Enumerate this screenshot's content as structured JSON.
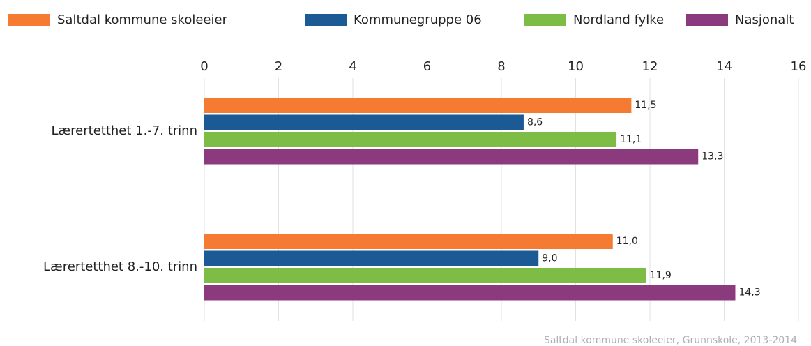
{
  "chart_data": {
    "type": "hbar",
    "categories": [
      "Lærertetthet 1.-7. trinn",
      "Lærertetthet 8.-10. trinn"
    ],
    "series": [
      {
        "name": "Saltdal kommune skoleeier",
        "color": "#f47b31",
        "values": [
          11.5,
          11.0
        ],
        "value_labels": [
          "11,5",
          "11,0"
        ]
      },
      {
        "name": "Kommunegruppe 06",
        "color": "#1c5a96",
        "values": [
          8.6,
          9.0
        ],
        "value_labels": [
          "8,6",
          "9,0"
        ]
      },
      {
        "name": "Nordland fylke",
        "color": "#7ebd45",
        "values": [
          11.1,
          11.9
        ],
        "value_labels": [
          "11,1",
          "11,9"
        ]
      },
      {
        "name": "Nasjonalt",
        "color": "#8b3a7e",
        "values": [
          13.3,
          14.3
        ],
        "value_labels": [
          "13,3",
          "14,3"
        ]
      }
    ],
    "xlim": [
      0,
      16
    ],
    "xticks": [
      0,
      2,
      4,
      6,
      8,
      10,
      12,
      14,
      16
    ],
    "grid": true,
    "source": "Saltdal kommune skoleeier, Grunnskole, 2013-2014"
  }
}
